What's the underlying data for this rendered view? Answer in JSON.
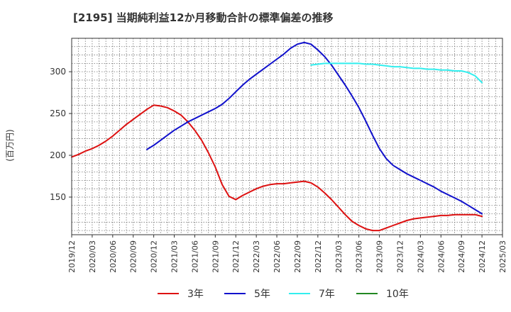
{
  "chart_data": {
    "type": "line",
    "title": "[2195]  当期純利益12か月移動合計の標準偏差の推移",
    "ylabel": "(百万円)",
    "xlabel": "",
    "ylim": [
      105,
      340
    ],
    "yticks": [
      150,
      200,
      250,
      300
    ],
    "xlim": [
      "2019-12",
      "2025-03"
    ],
    "xticks": [
      "2019/12",
      "2020/03",
      "2020/06",
      "2020/09",
      "2020/12",
      "2021/03",
      "2021/06",
      "2021/09",
      "2021/12",
      "2022/03",
      "2022/06",
      "2022/09",
      "2022/12",
      "2023/03",
      "2023/06",
      "2023/09",
      "2023/12",
      "2024/03",
      "2024/06",
      "2024/09",
      "2024/12",
      "2025/03"
    ],
    "grid": true,
    "legend_position": "bottom",
    "series": [
      {
        "name": "3年",
        "color": "#dd1111",
        "x": [
          "2019-12",
          "2020-01",
          "2020-02",
          "2020-03",
          "2020-04",
          "2020-05",
          "2020-06",
          "2020-07",
          "2020-08",
          "2020-09",
          "2020-10",
          "2020-11",
          "2020-12",
          "2021-01",
          "2021-02",
          "2021-03",
          "2021-04",
          "2021-05",
          "2021-06",
          "2021-07",
          "2021-08",
          "2021-09",
          "2021-10",
          "2021-11",
          "2021-12",
          "2022-01",
          "2022-02",
          "2022-03",
          "2022-04",
          "2022-05",
          "2022-06",
          "2022-07",
          "2022-08",
          "2022-09",
          "2022-10",
          "2022-11",
          "2022-12",
          "2023-01",
          "2023-02",
          "2023-03",
          "2023-04",
          "2023-05",
          "2023-06",
          "2023-07",
          "2023-08",
          "2023-09",
          "2023-10",
          "2023-11",
          "2023-12",
          "2024-01",
          "2024-02",
          "2024-03",
          "2024-04",
          "2024-05",
          "2024-06",
          "2024-07",
          "2024-08",
          "2024-09",
          "2024-10",
          "2024-11",
          "2024-12"
        ],
        "values": [
          198,
          201,
          205,
          208,
          212,
          217,
          223,
          230,
          237,
          243,
          249,
          255,
          260,
          259,
          257,
          253,
          248,
          240,
          230,
          218,
          203,
          186,
          165,
          151,
          147,
          152,
          156,
          160,
          163,
          165,
          166,
          166,
          167,
          168,
          169,
          167,
          162,
          155,
          147,
          138,
          129,
          121,
          116,
          112,
          110,
          110,
          113,
          116,
          119,
          122,
          124,
          125,
          126,
          127,
          128,
          128,
          129,
          129,
          129,
          129,
          127
        ]
      },
      {
        "name": "5年",
        "color": "#1111cc",
        "x": [
          "2020-11",
          "2020-12",
          "2021-01",
          "2021-02",
          "2021-03",
          "2021-04",
          "2021-05",
          "2021-06",
          "2021-07",
          "2021-08",
          "2021-09",
          "2021-10",
          "2021-11",
          "2021-12",
          "2022-01",
          "2022-02",
          "2022-03",
          "2022-04",
          "2022-05",
          "2022-06",
          "2022-07",
          "2022-08",
          "2022-09",
          "2022-10",
          "2022-11",
          "2022-12",
          "2023-01",
          "2023-02",
          "2023-03",
          "2023-04",
          "2023-05",
          "2023-06",
          "2023-07",
          "2023-08",
          "2023-09",
          "2023-10",
          "2023-11",
          "2023-12",
          "2024-01",
          "2024-02",
          "2024-03",
          "2024-04",
          "2024-05",
          "2024-06",
          "2024-07",
          "2024-08",
          "2024-09",
          "2024-10",
          "2024-11",
          "2024-12"
        ],
        "values": [
          207,
          212,
          218,
          224,
          230,
          235,
          240,
          244,
          248,
          252,
          256,
          261,
          268,
          276,
          284,
          291,
          297,
          303,
          309,
          315,
          321,
          328,
          333,
          335,
          333,
          326,
          318,
          308,
          296,
          284,
          271,
          257,
          241,
          224,
          208,
          196,
          188,
          183,
          178,
          174,
          170,
          166,
          162,
          157,
          153,
          149,
          145,
          140,
          135,
          130
        ]
      },
      {
        "name": "7年",
        "color": "#33eeee",
        "x": [
          "2022-11",
          "2022-12",
          "2023-01",
          "2023-02",
          "2023-03",
          "2023-04",
          "2023-05",
          "2023-06",
          "2023-07",
          "2023-08",
          "2023-09",
          "2023-10",
          "2023-11",
          "2023-12",
          "2024-01",
          "2024-02",
          "2024-03",
          "2024-04",
          "2024-05",
          "2024-06",
          "2024-07",
          "2024-08",
          "2024-09",
          "2024-10",
          "2024-11",
          "2024-12"
        ],
        "values": [
          308,
          309,
          310,
          310,
          310,
          310,
          310,
          310,
          309,
          309,
          308,
          307,
          306,
          306,
          305,
          304,
          304,
          303,
          303,
          302,
          302,
          301,
          301,
          299,
          295,
          287
        ]
      },
      {
        "name": "10年",
        "color": "#228822",
        "x": [],
        "values": []
      }
    ]
  }
}
